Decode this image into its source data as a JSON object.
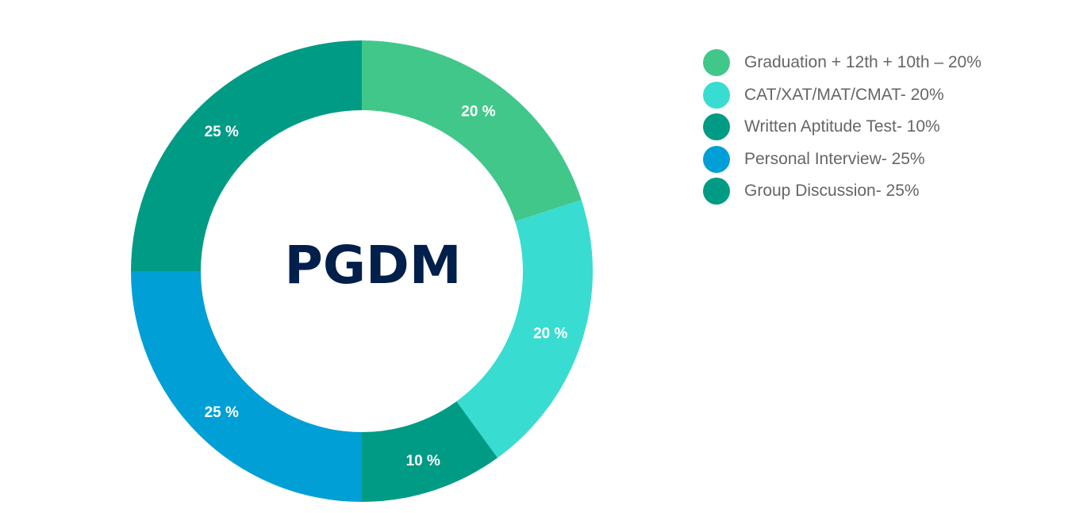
{
  "chart_data": {
    "type": "pie",
    "variant": "donut",
    "title": "PGDM",
    "center_label": "PGDM",
    "start_angle_deg": 0,
    "direction": "clockwise",
    "slices": [
      {
        "name": "Graduation + 12th + 10th",
        "value": 20,
        "label": "20 %",
        "legend": "Graduation + 12th + 10th – 20%",
        "color": "#42c78b"
      },
      {
        "name": "CAT/XAT/MAT/CMAT",
        "value": 20,
        "label": "20 %",
        "legend": "CAT/XAT/MAT/CMAT- 20%",
        "color": "#38dcd0"
      },
      {
        "name": "Written Aptitude Test",
        "value": 10,
        "label": "10 %",
        "legend": "Written Aptitude Test- 10%",
        "color": "#009b85"
      },
      {
        "name": "Personal Interview",
        "value": 25,
        "label": "25 %",
        "legend": "Personal Interview- 25%",
        "color": "#009fd6"
      },
      {
        "name": "Group Discussion",
        "value": 25,
        "label": "25 %",
        "legend": "Group Discussion- 25%",
        "color": "#009b85"
      }
    ],
    "legend_position": "right"
  },
  "legend": {
    "items": [
      {
        "label": "Graduation + 12th + 10th – 20%",
        "color": "#42c78b"
      },
      {
        "label": "CAT/XAT/MAT/CMAT- 20%",
        "color": "#38dcd0"
      },
      {
        "label": "Written Aptitude Test- 10%",
        "color": "#009b85"
      },
      {
        "label": "Personal Interview- 25%",
        "color": "#009fd6"
      },
      {
        "label": "Group Discussion- 25%",
        "color": "#009b85"
      }
    ]
  }
}
